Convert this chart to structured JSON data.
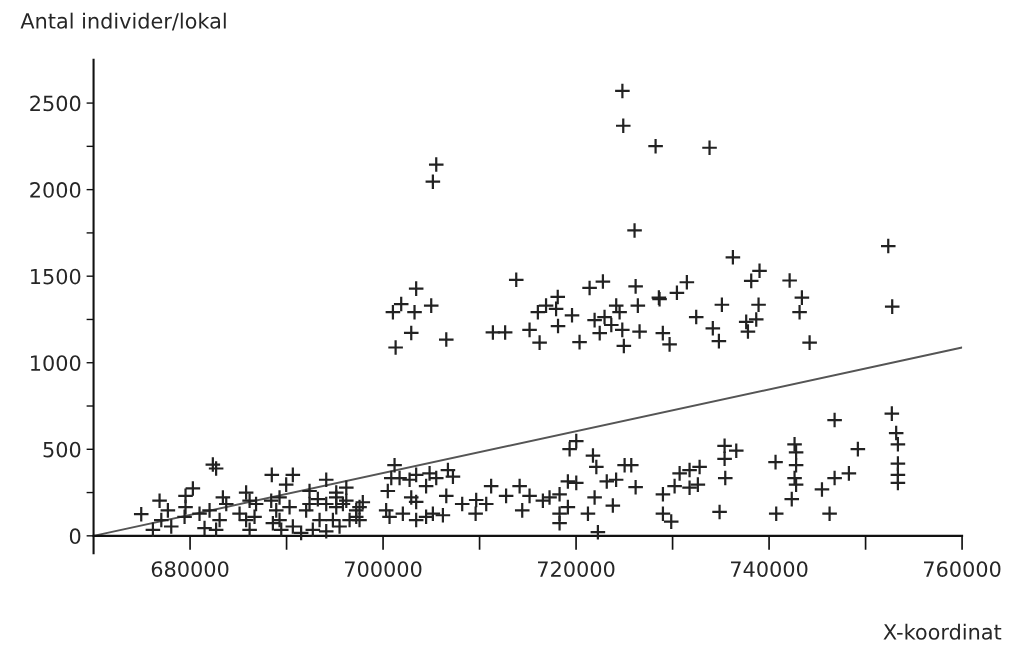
{
  "chart_data": {
    "type": "scatter",
    "xlabel": "X-koordinat",
    "ylabel": "Antal individer/lokal",
    "grid": false,
    "xlim": [
      670000,
      760000
    ],
    "ylim": [
      -100,
      2750
    ],
    "xticks": [
      680000,
      {
        "value": 690000,
        "label": null
      },
      700000,
      {
        "value": 710000,
        "label": null
      },
      720000,
      {
        "value": 730000,
        "label": null
      },
      740000,
      {
        "value": 750000,
        "label": null
      },
      760000
    ],
    "yticks": [
      0,
      {
        "value": 250,
        "label": null
      },
      500,
      {
        "value": 750,
        "label": null
      },
      1000,
      {
        "value": 1250,
        "label": null
      },
      1500,
      {
        "value": 1750,
        "label": null
      },
      2000,
      {
        "value": 2250,
        "label": null
      },
      2500
    ],
    "series": [
      {
        "color": "#222222",
        "marker": "cross",
        "x": [
          724800,
          724890,
          728240,
          705510,
          705160,
          726060,
          713800,
          703430,
          721400,
          722780,
          726170,
          728580,
          718100,
          733830,
          736250,
          731480,
          730450,
          739010,
          738150,
          742130,
          743400,
          752350,
          735110,
          738910,
          752760,
          701020,
          701880,
          703260,
          704990,
          702920,
          701300,
          706550,
          711380,
          712650,
          715180,
          716220,
          716040,
          716890,
          717930,
          719580,
          718130,
          720360,
          721920,
          722950,
          723650,
          724790,
          724160,
          724510,
          722450,
          724950,
          726580,
          726400,
          728650,
          728990,
          729690,
          732450,
          734170,
          734800,
          738670,
          737630,
          737810,
          743160,
          744200,
          752720,
          753170,
          753350,
          753350,
          753350,
          753350,
          746790,
          749200,
          748270,
          746790,
          745480,
          746270,
          740740,
          740670,
          742640,
          742800,
          742800,
          742640,
          742800,
          742350,
          735390,
          736600,
          735390,
          735460,
          734870,
          732800,
          731760,
          730730,
          730210,
          731760,
          732620,
          729000,
          729000,
          729860,
          720020,
          719330,
          721750,
          722100,
          725720,
          725030,
          723180,
          724150,
          726170,
          721920,
          723810,
          721230,
          722260,
          720020,
          719150,
          718290,
          717250,
          716560,
          715180,
          714420,
          718290,
          718290,
          719150,
          714150,
          712750,
          711200,
          710690,
          709650,
          708200,
          709590,
          706550,
          707240,
          706720,
          705510,
          704820,
          704460,
          703430,
          702750,
          701710,
          700850,
          701190,
          700490,
          702920,
          703430,
          706200,
          705160,
          704460,
          702050,
          703430,
          700670,
          700320,
          696190,
          695150,
          695840,
          697220,
          697560,
          674940,
          676840,
          677700,
          677020,
          676150,
          678050,
          680290,
          679530,
          679530,
          679430,
          682360,
          682700,
          681500,
          680980,
          682020,
          683060,
          682700,
          683400,
          683750,
          685810,
          686170,
          685130,
          685810,
          686680,
          686170,
          686840,
          688470,
          690650,
          689960,
          688410,
          689270,
          688930,
          689270,
          688580,
          690310,
          689450,
          690650,
          691510,
          692380,
          692380,
          693240,
          692030,
          694110,
          695150,
          694110,
          696190,
          695150,
          697220,
          697900,
          693420,
          694800,
          695490,
          696530,
          697560,
          692720,
          694110
        ],
        "values": [
          2570,
          2369,
          2251,
          2145,
          2046,
          1764,
          1479,
          1428,
          1432,
          1469,
          1441,
          1376,
          1380,
          2242,
          1609,
          1465,
          1404,
          1531,
          1473,
          1475,
          1376,
          1674,
          1335,
          1335,
          1324,
          1292,
          1339,
          1292,
          1330,
          1172,
          1088,
          1134,
          1175,
          1175,
          1190,
          1116,
          1292,
          1330,
          1311,
          1274,
          1212,
          1119,
          1246,
          1264,
          1218,
          1190,
          1330,
          1292,
          1171,
          1097,
          1180,
          1330,
          1367,
          1171,
          1106,
          1264,
          1199,
          1125,
          1250,
          1236,
          1180,
          1292,
          1116,
          706,
          594,
          529,
          417,
          352,
          306,
          669,
          501,
          361,
          334,
          268,
          128,
          128,
          426,
          529,
          482,
          408,
          334,
          296,
          212,
          520,
          492,
          445,
          334,
          138,
          398,
          380,
          361,
          287,
          278,
          296,
          240,
          128,
          82,
          547,
          501,
          464,
          398,
          408,
          408,
          314,
          324,
          281,
          222,
          175,
          128,
          21,
          306,
          314,
          240,
          222,
          203,
          231,
          147,
          128,
          73,
          166,
          287,
          231,
          287,
          184,
          207,
          184,
          128,
          231,
          342,
          380,
          334,
          361,
          287,
          352,
          324,
          334,
          334,
          408,
          259,
          222,
          196,
          119,
          128,
          110,
          128,
          91,
          110,
          147,
          278,
          222,
          184,
          110,
          166,
          125,
          203,
          147,
          91,
          35,
          54,
          274,
          231,
          166,
          110,
          412,
          389,
          45,
          128,
          147,
          91,
          35,
          222,
          184,
          250,
          203,
          128,
          91,
          110,
          35,
          184,
          352,
          352,
          296,
          203,
          222,
          147,
          91,
          73,
          166,
          35,
          54,
          17,
          259,
          184,
          212,
          147,
          324,
          250,
          184,
          203,
          166,
          147,
          194,
          91,
          91,
          54,
          91,
          91,
          35,
          26
        ]
      },
      {
        "type": "line",
        "color": "#555555",
        "line_style": "solid",
        "x": [
          670000,
          760000
        ],
        "values": [
          0,
          1088
        ]
      }
    ]
  }
}
